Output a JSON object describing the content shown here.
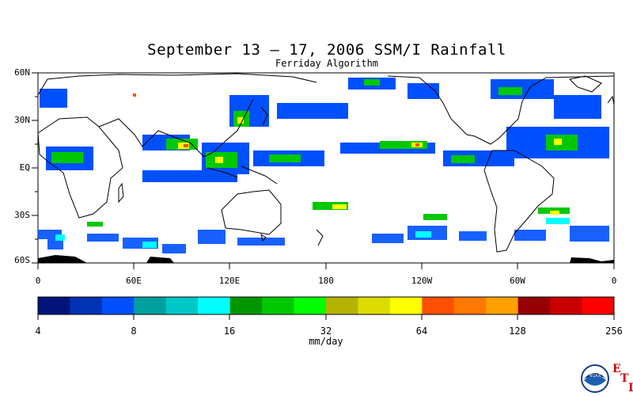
{
  "title": "September 13 – 17, 2006 SSM/I Rainfall",
  "subtitle": "Ferriday Algorithm",
  "lat_labels": [
    "60N",
    "30N",
    "EQ",
    "30S",
    "60S"
  ],
  "lon_labels": [
    "0",
    "60E",
    "120E",
    "180",
    "120W",
    "60W",
    "0"
  ],
  "colorbar": {
    "colors": [
      "#00147a",
      "#0032b4",
      "#0050ff",
      "#00a0a0",
      "#00c8c8",
      "#00ffff",
      "#009600",
      "#00c800",
      "#00ff00",
      "#b4b400",
      "#dcdc00",
      "#ffff00",
      "#ff5000",
      "#ff7800",
      "#ffa000",
      "#960000",
      "#c80000",
      "#ff0000"
    ],
    "tick_labels": [
      "4",
      "8",
      "16",
      "32",
      "64",
      "128",
      "256"
    ],
    "unit": "mm/day"
  },
  "logo": {
    "icon": "noaa-logo-icon",
    "text": "NOAA",
    "etl": [
      "E",
      "T",
      "L"
    ]
  }
}
